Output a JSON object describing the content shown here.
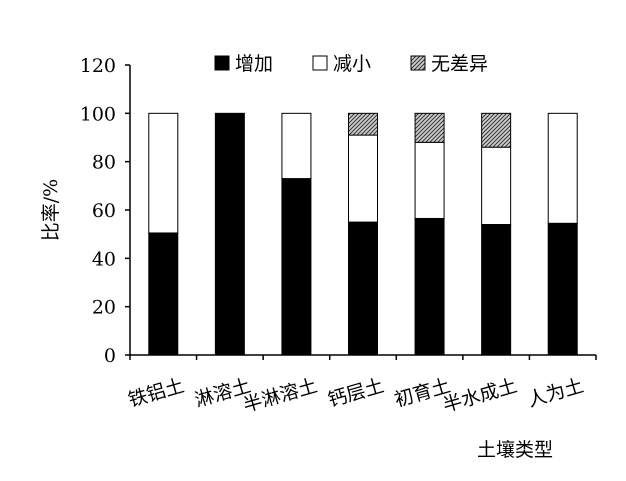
{
  "chart_data": {
    "type": "bar",
    "stacked": true,
    "title": "",
    "xlabel": "土壤类型",
    "ylabel": "比率/%",
    "ylim": [
      0,
      120
    ],
    "yticks": [
      "0",
      "20",
      "40",
      "60",
      "80",
      "100",
      "120"
    ],
    "grid": false,
    "legend_position": "top",
    "categories": [
      "铁铝土",
      "淋溶土",
      "半淋溶土",
      "钙层土",
      "初育土",
      "半水成土",
      "人为土"
    ],
    "series": [
      {
        "name": "增加",
        "color": "#000000",
        "values": [
          50.5,
          100,
          73,
          55,
          56.5,
          54,
          54.5
        ]
      },
      {
        "name": "减小",
        "color": "#ffffff",
        "values": [
          49.5,
          0,
          27,
          36,
          31.5,
          32,
          45.5
        ]
      },
      {
        "name": "无差异",
        "color": "hatched-gray",
        "values": [
          0,
          0,
          0,
          9,
          12,
          14,
          0
        ]
      }
    ]
  }
}
